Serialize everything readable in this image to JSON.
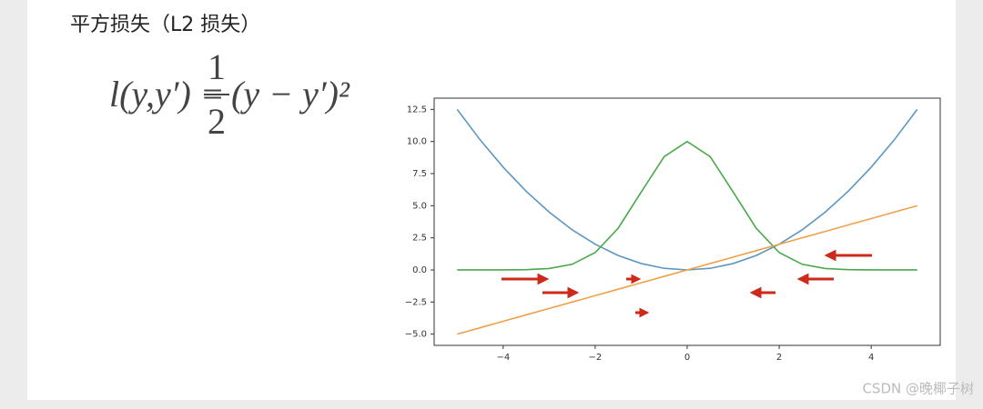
{
  "header": {
    "title": "平方损失（L2 损失）"
  },
  "formula": {
    "lhs": "l(y,y′) =",
    "numerator": "1",
    "denominator": "2",
    "rhs": "(y − y′)²"
  },
  "chart_data": {
    "type": "line",
    "x": [
      -5,
      -4.5,
      -4,
      -3.5,
      -3,
      -2.5,
      -2,
      -1.5,
      -1,
      -0.5,
      0,
      0.5,
      1,
      1.5,
      2,
      2.5,
      3,
      3.5,
      4,
      4.5,
      5
    ],
    "series": [
      {
        "color": "#5b97c2",
        "values": [
          12.5,
          10.125,
          8,
          6.125,
          4.5,
          3.125,
          2,
          1.125,
          0.5,
          0.125,
          0,
          0.125,
          0.5,
          1.125,
          2,
          3.125,
          4.5,
          6.125,
          8,
          10.125,
          12.5
        ]
      },
      {
        "color": "#4aa84a",
        "values": [
          0,
          0.0004,
          0.0034,
          0.022,
          0.111,
          0.439,
          1.353,
          3.247,
          6.065,
          8.825,
          10,
          8.825,
          6.065,
          3.247,
          1.353,
          0.439,
          0.111,
          0.022,
          0.0034,
          0.0004,
          0
        ]
      },
      {
        "color": "#f0a04a",
        "values": [
          -5,
          -4.5,
          -4,
          -3.5,
          -3,
          -2.5,
          -2,
          -1.5,
          -1,
          -0.5,
          0,
          0.5,
          1,
          1.5,
          2,
          2.5,
          3,
          3.5,
          4,
          4.5,
          5
        ]
      }
    ],
    "xlim": [
      -5.5,
      5.5
    ],
    "ylim": [
      -5.875,
      13.375
    ],
    "xticks": [
      {
        "value": -4,
        "label": "−4"
      },
      {
        "value": -2,
        "label": "−2"
      },
      0,
      2,
      4
    ],
    "yticks": [
      {
        "value": -5,
        "label": "−5.0"
      },
      {
        "value": -2.5,
        "label": "−2.5"
      },
      {
        "value": 0,
        "label": "0.0"
      },
      2.5,
      {
        "value": 5,
        "label": "5.0"
      },
      7.5,
      {
        "value": 10,
        "label": "10.0"
      },
      12.5
    ]
  },
  "watermark": "CSDN @晚椰子树"
}
